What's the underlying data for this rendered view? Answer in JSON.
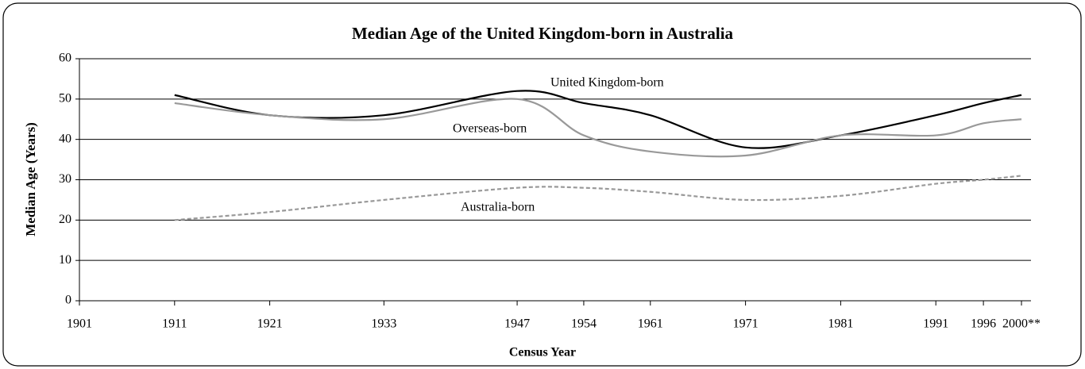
{
  "chart_data": {
    "type": "line",
    "title": "Median Age of the United Kingdom-born in Australia",
    "x_label": "Census Year",
    "y_label": "Median Age (Years)",
    "x": [
      1911,
      1921,
      1933,
      1947,
      1954,
      1961,
      1971,
      1981,
      1991,
      1996,
      2000
    ],
    "series": [
      {
        "name": "United Kingdom-born",
        "color": "#000000",
        "dash": false,
        "values": [
          51,
          46,
          46,
          52,
          49,
          46,
          38,
          41,
          46,
          49,
          51
        ]
      },
      {
        "name": "Overseas-born",
        "color": "#999999",
        "dash": false,
        "values": [
          49,
          46,
          45,
          50,
          41,
          37,
          36,
          41,
          41,
          44,
          45
        ]
      },
      {
        "name": "Australia-born",
        "color": "#999999",
        "dash": true,
        "values": [
          20,
          22,
          25,
          28,
          28,
          27,
          25,
          26,
          29,
          30,
          31
        ]
      }
    ],
    "xlim": [
      1901,
      2001
    ],
    "xticks": [
      1901,
      1911,
      1921,
      1933,
      1947,
      1954,
      1961,
      1971,
      1981,
      1991,
      1996,
      {
        "value": 2000,
        "label": "2000**"
      }
    ],
    "ylim": [
      0,
      60
    ],
    "yticks": [
      0,
      10,
      20,
      30,
      40,
      50,
      60
    ],
    "grid": true
  }
}
